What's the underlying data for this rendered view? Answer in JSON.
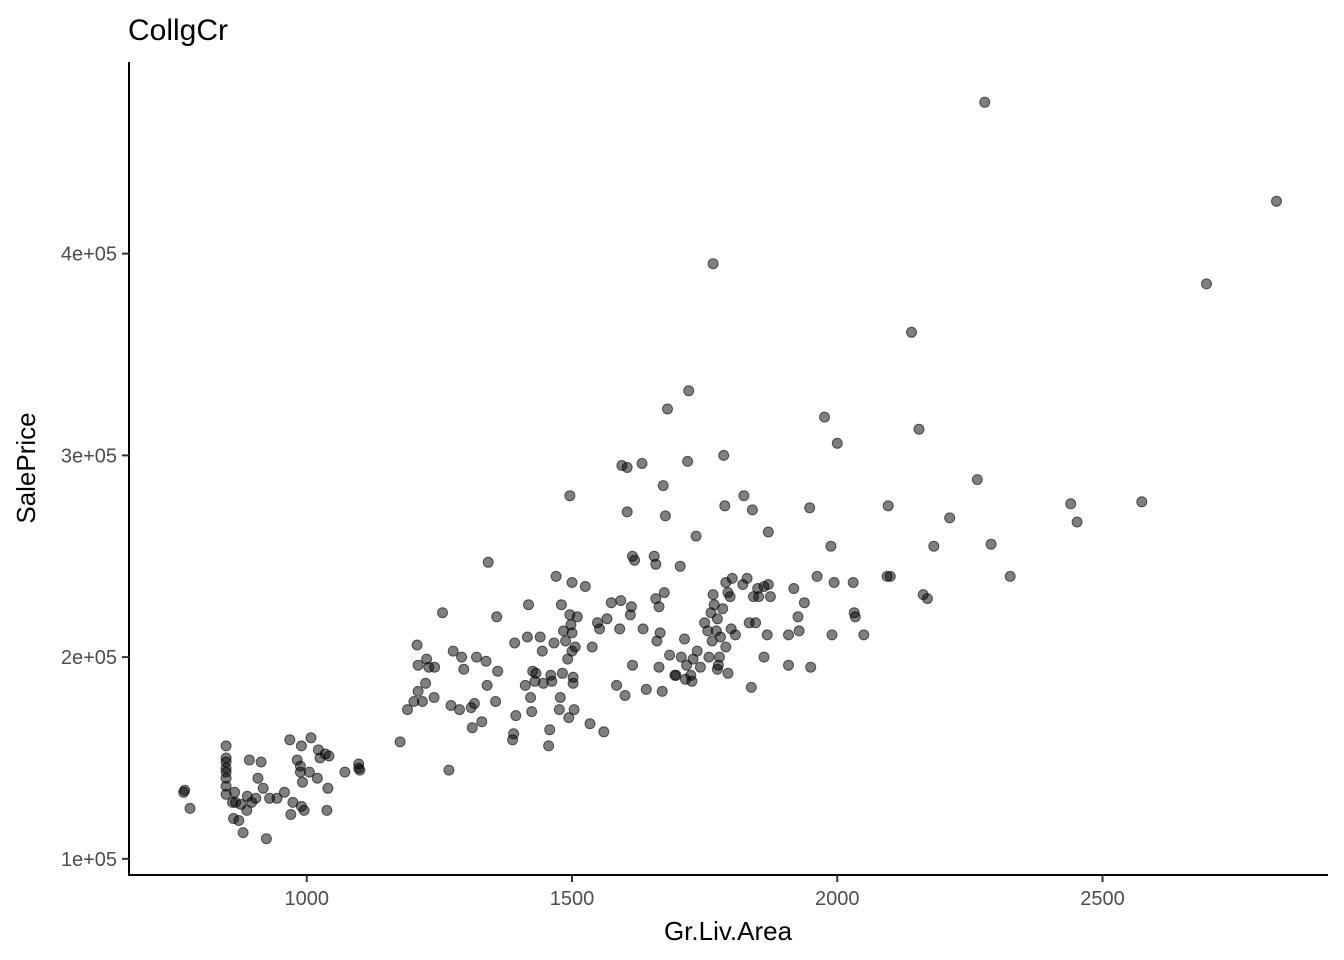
{
  "chart_data": {
    "type": "scatter",
    "title": "CollgCr",
    "xlabel": "Gr.Liv.Area",
    "ylabel": "SalePrice",
    "xlim": [
      665,
      2925
    ],
    "ylim": [
      92000,
      495000
    ],
    "x_ticks": [
      1000,
      1500,
      2000,
      2500
    ],
    "x_tick_labels": [
      "1000",
      "1500",
      "2000",
      "2500"
    ],
    "y_ticks": [
      100000,
      200000,
      300000,
      400000
    ],
    "y_tick_labels": [
      "1e+05",
      "2e+05",
      "3e+05",
      "4e+05"
    ],
    "grid": false,
    "legend": "none",
    "point_color": "#000000",
    "points": [
      [
        768,
        133000
      ],
      [
        770,
        134000
      ],
      [
        780,
        125000
      ],
      [
        848,
        156000
      ],
      [
        848,
        150000
      ],
      [
        848,
        148000
      ],
      [
        848,
        145000
      ],
      [
        848,
        143000
      ],
      [
        848,
        140000
      ],
      [
        848,
        136000
      ],
      [
        848,
        132000
      ],
      [
        860,
        128000
      ],
      [
        862,
        120000
      ],
      [
        864,
        133000
      ],
      [
        866,
        128000
      ],
      [
        872,
        119000
      ],
      [
        876,
        127000
      ],
      [
        880,
        113000
      ],
      [
        887,
        124000
      ],
      [
        888,
        131000
      ],
      [
        892,
        149000
      ],
      [
        896,
        128000
      ],
      [
        904,
        130000
      ],
      [
        908,
        140000
      ],
      [
        914,
        148000
      ],
      [
        918,
        135000
      ],
      [
        924,
        110000
      ],
      [
        930,
        130000
      ],
      [
        944,
        130000
      ],
      [
        958,
        133000
      ],
      [
        968,
        159000
      ],
      [
        970,
        122000
      ],
      [
        974,
        128000
      ],
      [
        982,
        149000
      ],
      [
        988,
        146000
      ],
      [
        988,
        143000
      ],
      [
        990,
        156000
      ],
      [
        990,
        126000
      ],
      [
        992,
        138000
      ],
      [
        995,
        124000
      ],
      [
        1005,
        143000
      ],
      [
        1008,
        160000
      ],
      [
        1020,
        140000
      ],
      [
        1022,
        154000
      ],
      [
        1025,
        150000
      ],
      [
        1035,
        152000
      ],
      [
        1038,
        124000
      ],
      [
        1040,
        135000
      ],
      [
        1042,
        151000
      ],
      [
        1072,
        143000
      ],
      [
        1098,
        147000
      ],
      [
        1098,
        145000
      ],
      [
        1100,
        144000
      ],
      [
        1176,
        158000
      ],
      [
        1190,
        174000
      ],
      [
        1202,
        178000
      ],
      [
        1208,
        206000
      ],
      [
        1210,
        196000
      ],
      [
        1210,
        183000
      ],
      [
        1218,
        178000
      ],
      [
        1224,
        187000
      ],
      [
        1226,
        199000
      ],
      [
        1230,
        195000
      ],
      [
        1240,
        180000
      ],
      [
        1241,
        195000
      ],
      [
        1256,
        222000
      ],
      [
        1268,
        144000
      ],
      [
        1272,
        176000
      ],
      [
        1276,
        203000
      ],
      [
        1288,
        174000
      ],
      [
        1292,
        200000
      ],
      [
        1296,
        194000
      ],
      [
        1310,
        175000
      ],
      [
        1312,
        165000
      ],
      [
        1316,
        177000
      ],
      [
        1320,
        200000
      ],
      [
        1330,
        168000
      ],
      [
        1338,
        198000
      ],
      [
        1340,
        186000
      ],
      [
        1342,
        247000
      ],
      [
        1356,
        178000
      ],
      [
        1358,
        220000
      ],
      [
        1360,
        193000
      ],
      [
        1388,
        159000
      ],
      [
        1390,
        162000
      ],
      [
        1392,
        207000
      ],
      [
        1394,
        171000
      ],
      [
        1412,
        186000
      ],
      [
        1416,
        210000
      ],
      [
        1418,
        226000
      ],
      [
        1422,
        180000
      ],
      [
        1424,
        173000
      ],
      [
        1426,
        193000
      ],
      [
        1430,
        188000
      ],
      [
        1432,
        192000
      ],
      [
        1440,
        210000
      ],
      [
        1444,
        203000
      ],
      [
        1446,
        187000
      ],
      [
        1456,
        156000
      ],
      [
        1458,
        164000
      ],
      [
        1460,
        191000
      ],
      [
        1462,
        188000
      ],
      [
        1466,
        207000
      ],
      [
        1470,
        240000
      ],
      [
        1476,
        174000
      ],
      [
        1478,
        180000
      ],
      [
        1480,
        226000
      ],
      [
        1482,
        192000
      ],
      [
        1484,
        213000
      ],
      [
        1488,
        208000
      ],
      [
        1492,
        199000
      ],
      [
        1494,
        170000
      ],
      [
        1496,
        280000
      ],
      [
        1496,
        221000
      ],
      [
        1498,
        216000
      ],
      [
        1500,
        237000
      ],
      [
        1500,
        212000
      ],
      [
        1500,
        203000
      ],
      [
        1502,
        190000
      ],
      [
        1502,
        187000
      ],
      [
        1504,
        174000
      ],
      [
        1506,
        205000
      ],
      [
        1510,
        220000
      ],
      [
        1525,
        235000
      ],
      [
        1534,
        167000
      ],
      [
        1538,
        205000
      ],
      [
        1548,
        217000
      ],
      [
        1552,
        214000
      ],
      [
        1560,
        163000
      ],
      [
        1566,
        219000
      ],
      [
        1574,
        227000
      ],
      [
        1584,
        186000
      ],
      [
        1590,
        214000
      ],
      [
        1592,
        228000
      ],
      [
        1594,
        295000
      ],
      [
        1600,
        181000
      ],
      [
        1604,
        272000
      ],
      [
        1604,
        294000
      ],
      [
        1610,
        221000
      ],
      [
        1612,
        225000
      ],
      [
        1614,
        196000
      ],
      [
        1614,
        250000
      ],
      [
        1618,
        248000
      ],
      [
        1632,
        296000
      ],
      [
        1634,
        214000
      ],
      [
        1640,
        184000
      ],
      [
        1655,
        250000
      ],
      [
        1658,
        246000
      ],
      [
        1658,
        229000
      ],
      [
        1660,
        208000
      ],
      [
        1664,
        225000
      ],
      [
        1664,
        195000
      ],
      [
        1666,
        212000
      ],
      [
        1670,
        183000
      ],
      [
        1672,
        285000
      ],
      [
        1674,
        232000
      ],
      [
        1676,
        270000
      ],
      [
        1680,
        323000
      ],
      [
        1684,
        201000
      ],
      [
        1694,
        191000
      ],
      [
        1696,
        191000
      ],
      [
        1704,
        245000
      ],
      [
        1706,
        200000
      ],
      [
        1712,
        209000
      ],
      [
        1714,
        189000
      ],
      [
        1716,
        196000
      ],
      [
        1718,
        297000
      ],
      [
        1720,
        332000
      ],
      [
        1724,
        191000
      ],
      [
        1726,
        188000
      ],
      [
        1728,
        199000
      ],
      [
        1734,
        260000
      ],
      [
        1736,
        203000
      ],
      [
        1742,
        195000
      ],
      [
        1750,
        217000
      ],
      [
        1756,
        213000
      ],
      [
        1758,
        200000
      ],
      [
        1762,
        222000
      ],
      [
        1764,
        208000
      ],
      [
        1766,
        231000
      ],
      [
        1766,
        395000
      ],
      [
        1768,
        226000
      ],
      [
        1772,
        213000
      ],
      [
        1774,
        219000
      ],
      [
        1774,
        194000
      ],
      [
        1776,
        196000
      ],
      [
        1778,
        200000
      ],
      [
        1780,
        210000
      ],
      [
        1784,
        224000
      ],
      [
        1786,
        300000
      ],
      [
        1788,
        275000
      ],
      [
        1790,
        205000
      ],
      [
        1790,
        237000
      ],
      [
        1794,
        192000
      ],
      [
        1794,
        232000
      ],
      [
        1798,
        230000
      ],
      [
        1800,
        214000
      ],
      [
        1802,
        239000
      ],
      [
        1808,
        211000
      ],
      [
        1822,
        236000
      ],
      [
        1824,
        280000
      ],
      [
        1830,
        239000
      ],
      [
        1834,
        217000
      ],
      [
        1838,
        185000
      ],
      [
        1840,
        273000
      ],
      [
        1842,
        230000
      ],
      [
        1846,
        217000
      ],
      [
        1850,
        234000
      ],
      [
        1852,
        230000
      ],
      [
        1862,
        200000
      ],
      [
        1862,
        235000
      ],
      [
        1868,
        211000
      ],
      [
        1870,
        236000
      ],
      [
        1870,
        262000
      ],
      [
        1874,
        230000
      ],
      [
        1908,
        196000
      ],
      [
        1908,
        211000
      ],
      [
        1918,
        234000
      ],
      [
        1926,
        220000
      ],
      [
        1928,
        213000
      ],
      [
        1938,
        227000
      ],
      [
        1948,
        274000
      ],
      [
        1950,
        195000
      ],
      [
        1962,
        240000
      ],
      [
        1976,
        319000
      ],
      [
        1988,
        255000
      ],
      [
        1990,
        211000
      ],
      [
        1994,
        237000
      ],
      [
        2000,
        306000
      ],
      [
        2030,
        237000
      ],
      [
        2032,
        222000
      ],
      [
        2034,
        220000
      ],
      [
        2050,
        211000
      ],
      [
        2094,
        240000
      ],
      [
        2096,
        275000
      ],
      [
        2100,
        240000
      ],
      [
        2140,
        361000
      ],
      [
        2154,
        313000
      ],
      [
        2162,
        231000
      ],
      [
        2170,
        229000
      ],
      [
        2182,
        255000
      ],
      [
        2212,
        269000
      ],
      [
        2264,
        288000
      ],
      [
        2278,
        475000
      ],
      [
        2290,
        256000
      ],
      [
        2326,
        240000
      ],
      [
        2440,
        276000
      ],
      [
        2452,
        267000
      ],
      [
        2574,
        277000
      ],
      [
        2696,
        385000
      ],
      [
        2828,
        426000
      ]
    ]
  }
}
